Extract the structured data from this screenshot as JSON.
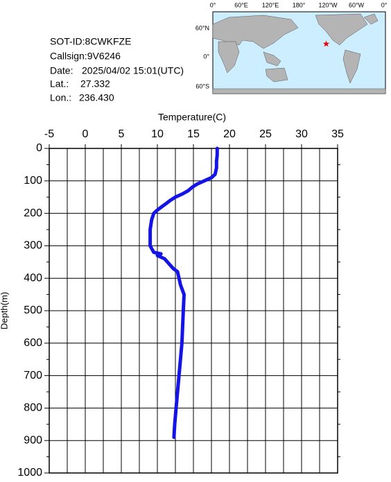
{
  "chart_data": {
    "type": "line",
    "x_label": "Temperature(C)",
    "y_label": "Depth(m)",
    "xlim": [
      -5,
      35
    ],
    "xticks": [
      -5,
      0,
      5,
      10,
      15,
      20,
      25,
      30,
      35
    ],
    "ylim": [
      0,
      1000
    ],
    "yticks": [
      0,
      100,
      200,
      300,
      400,
      500,
      600,
      700,
      800,
      900,
      1000
    ],
    "y_inverted": true,
    "grid": true,
    "color": "#1414e6",
    "x": [
      18.3,
      18.3,
      18.2,
      18.2,
      18.0,
      17.5,
      16.5,
      15.5,
      14.8,
      14.3,
      13.5,
      12.5,
      11.8,
      11.2,
      10.6,
      10.0,
      9.5,
      9.2,
      9.0,
      9.0,
      9.0,
      9.5,
      10.5,
      10.0,
      11.0,
      11.8,
      12.2,
      12.8,
      13.0,
      13.2,
      13.7,
      13.6,
      13.5,
      13.4,
      13.2,
      13.0,
      12.8,
      12.6,
      12.4,
      12.3
    ],
    "y": [
      0,
      20,
      40,
      60,
      80,
      90,
      100,
      110,
      120,
      130,
      140,
      150,
      160,
      170,
      180,
      190,
      200,
      220,
      250,
      280,
      300,
      320,
      325,
      330,
      340,
      360,
      370,
      380,
      400,
      420,
      450,
      500,
      550,
      600,
      650,
      700,
      750,
      800,
      850,
      890
    ]
  },
  "info": {
    "sot_id": "SOT-ID:8CWKFZE",
    "callsign": "Callsign:9V6246",
    "date_label": "Date:",
    "date": "2025/04/02 15:01(UTC)",
    "lat": {
      "label": "Lat.:",
      "value": 27.332,
      "text": "27.332"
    },
    "lon": {
      "label": "Lon.:",
      "value": 236.43,
      "text": "236.430"
    }
  },
  "map": {
    "lon_labels": [
      "0°",
      "60°E",
      "120°E",
      "180°",
      "120°W",
      "60°W",
      "0°"
    ],
    "lat_labels": [
      "60°N",
      "0°",
      "60°S"
    ],
    "marker_color": "#e60000"
  }
}
